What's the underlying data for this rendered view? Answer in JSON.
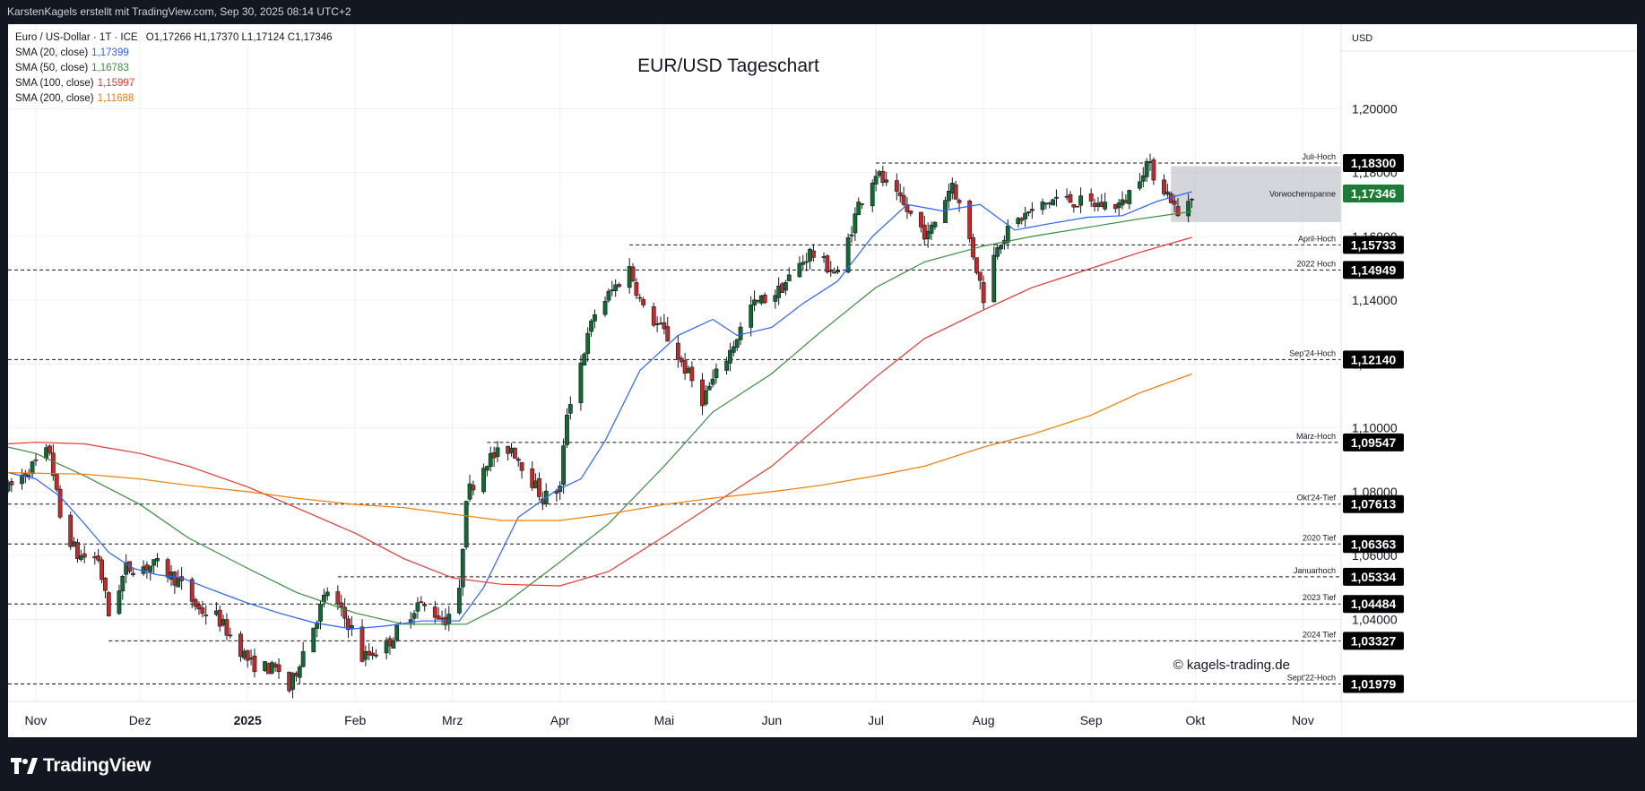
{
  "header": {
    "text": "KarstenKagels erstellt mit TradingView.com, Sep 30, 2025 08:14 UTC+2"
  },
  "brand": {
    "name": "TradingView"
  },
  "legend": {
    "symbol": "Euro / US-Dollar · 1T · ICE",
    "ohlc": "O1,17266  H1,17370  L1,17124  C1,17346",
    "indicators": [
      {
        "label": "SMA (20, close)",
        "value": "1,17399",
        "color": "#2962ff"
      },
      {
        "label": "SMA (50, close)",
        "value": "1,16783",
        "color": "#388e3c"
      },
      {
        "label": "SMA (100, close)",
        "value": "1,15997",
        "color": "#e53935"
      },
      {
        "label": "SMA (200, close)",
        "value": "1,11688",
        "color": "#f57c00"
      }
    ]
  },
  "chart_data": {
    "type": "candlestick",
    "title": "EUR/USD Tageschart",
    "currency": "USD",
    "watermark": "© kagels-trading.de",
    "y_range": [
      1.0143,
      1.2265
    ],
    "y_ticks": [
      {
        "value": 1.2,
        "label": "1,20000"
      },
      {
        "value": 1.18,
        "label": "1,18000"
      },
      {
        "value": 1.16,
        "label": "1,16000"
      },
      {
        "value": 1.14,
        "label": "1,14000"
      },
      {
        "value": 1.12,
        "label": "1,12000"
      },
      {
        "value": 1.1,
        "label": "1,10000"
      },
      {
        "value": 1.08,
        "label": "1,08000"
      },
      {
        "value": 1.06,
        "label": "1,06000"
      },
      {
        "value": 1.04,
        "label": "1,04000"
      }
    ],
    "x_range": [
      "2024-10-24",
      "2025-11-12"
    ],
    "x_ticks": [
      {
        "date": "2024-11-01",
        "label": "Nov",
        "bold": false
      },
      {
        "date": "2024-12-01",
        "label": "Dez",
        "bold": false
      },
      {
        "date": "2025-01-01",
        "label": "2025",
        "bold": true
      },
      {
        "date": "2025-02-01",
        "label": "Feb",
        "bold": false
      },
      {
        "date": "2025-03-01",
        "label": "Mrz",
        "bold": false
      },
      {
        "date": "2025-04-01",
        "label": "Apr",
        "bold": false
      },
      {
        "date": "2025-05-01",
        "label": "Mai",
        "bold": false
      },
      {
        "date": "2025-06-01",
        "label": "Jun",
        "bold": false
      },
      {
        "date": "2025-07-01",
        "label": "Jul",
        "bold": false
      },
      {
        "date": "2025-08-01",
        "label": "Aug",
        "bold": false
      },
      {
        "date": "2025-09-01",
        "label": "Sep",
        "bold": false
      },
      {
        "date": "2025-10-01",
        "label": "Okt",
        "bold": false
      },
      {
        "date": "2025-11-01",
        "label": "Nov",
        "bold": false
      }
    ],
    "levels": [
      {
        "name": "Juli-Hoch",
        "value": 1.183,
        "label": "1,18300",
        "from": "2025-07-01"
      },
      {
        "name": "April-Hoch",
        "value": 1.15733,
        "label": "1,15733",
        "from": "2025-04-21"
      },
      {
        "name": "2022 Hoch",
        "value": 1.14949,
        "label": "1,14949",
        "from": "2024-10-24"
      },
      {
        "name": "Sep'24-Hoch",
        "value": 1.1214,
        "label": "1,12140",
        "from": "2024-10-24"
      },
      {
        "name": "März-Hoch",
        "value": 1.09547,
        "label": "1,09547",
        "from": "2025-03-11"
      },
      {
        "name": "Okt'24-Tief",
        "value": 1.07613,
        "label": "1,07613",
        "from": "2024-10-24"
      },
      {
        "name": "2020 Tief",
        "value": 1.06363,
        "label": "1,06363",
        "from": "2024-10-24"
      },
      {
        "name": "Januarhoch",
        "value": 1.05334,
        "label": "1,05334",
        "from": "2025-01-27"
      },
      {
        "name": "2023 Tief",
        "value": 1.04484,
        "label": "1,04484",
        "from": "2024-10-24"
      },
      {
        "name": "2024 Tief",
        "value": 1.03327,
        "label": "1,03327",
        "from": "2024-11-22"
      },
      {
        "name": "Sept'22-Hoch",
        "value": 1.01979,
        "label": "1,01979",
        "from": "2024-10-24"
      }
    ],
    "current_price": {
      "value": 1.17346,
      "label": "1,17346",
      "color": "#1b7d35"
    },
    "range_box": {
      "name": "Vorwochenspanne",
      "from": "2025-09-24",
      "to": "2025-11-12",
      "top": 1.182,
      "bottom": 1.1645
    },
    "sma_series": [
      {
        "name": "SMA 20",
        "color": "#2962ff",
        "points": [
          [
            "2024-10-24",
            1.086
          ],
          [
            "2024-11-01",
            1.084
          ],
          [
            "2024-11-08",
            1.0785
          ],
          [
            "2024-11-15",
            1.07
          ],
          [
            "2024-11-22",
            1.061
          ],
          [
            "2024-11-29",
            1.056
          ],
          [
            "2024-12-06",
            1.054
          ],
          [
            "2024-12-13",
            1.053
          ],
          [
            "2024-12-20",
            1.05
          ],
          [
            "2024-12-31",
            1.0455
          ],
          [
            "2025-01-10",
            1.042
          ],
          [
            "2025-01-20",
            1.039
          ],
          [
            "2025-01-31",
            1.037
          ],
          [
            "2025-02-10",
            1.038
          ],
          [
            "2025-02-20",
            1.0395
          ],
          [
            "2025-03-03",
            1.0395
          ],
          [
            "2025-03-10",
            1.05
          ],
          [
            "2025-03-20",
            1.072
          ],
          [
            "2025-03-31",
            1.0805
          ],
          [
            "2025-04-07",
            1.084
          ],
          [
            "2025-04-14",
            1.096
          ],
          [
            "2025-04-24",
            1.118
          ],
          [
            "2025-05-05",
            1.129
          ],
          [
            "2025-05-15",
            1.134
          ],
          [
            "2025-05-22",
            1.129
          ],
          [
            "2025-06-01",
            1.1315
          ],
          [
            "2025-06-10",
            1.139
          ],
          [
            "2025-06-20",
            1.146
          ],
          [
            "2025-06-30",
            1.16
          ],
          [
            "2025-07-10",
            1.17
          ],
          [
            "2025-07-20",
            1.168
          ],
          [
            "2025-07-31",
            1.17
          ],
          [
            "2025-08-10",
            1.162
          ],
          [
            "2025-08-20",
            1.164
          ],
          [
            "2025-08-31",
            1.166
          ],
          [
            "2025-09-10",
            1.1665
          ],
          [
            "2025-09-20",
            1.171
          ],
          [
            "2025-09-30",
            1.174
          ]
        ]
      },
      {
        "name": "SMA 50",
        "color": "#388e3c",
        "points": [
          [
            "2024-10-24",
            1.094
          ],
          [
            "2024-11-01",
            1.092
          ],
          [
            "2024-11-15",
            1.085
          ],
          [
            "2024-12-01",
            1.076
          ],
          [
            "2024-12-15",
            1.0655
          ],
          [
            "2025-01-01",
            1.056
          ],
          [
            "2025-01-15",
            1.0485
          ],
          [
            "2025-02-01",
            1.042
          ],
          [
            "2025-02-15",
            1.0385
          ],
          [
            "2025-03-05",
            1.0385
          ],
          [
            "2025-03-15",
            1.044
          ],
          [
            "2025-04-01",
            1.058
          ],
          [
            "2025-04-15",
            1.07
          ],
          [
            "2025-05-01",
            1.088
          ],
          [
            "2025-05-15",
            1.105
          ],
          [
            "2025-06-01",
            1.117
          ],
          [
            "2025-06-15",
            1.13
          ],
          [
            "2025-07-01",
            1.144
          ],
          [
            "2025-07-15",
            1.152
          ],
          [
            "2025-08-01",
            1.157
          ],
          [
            "2025-08-15",
            1.16
          ],
          [
            "2025-09-01",
            1.163
          ],
          [
            "2025-09-15",
            1.1655
          ],
          [
            "2025-09-30",
            1.1678
          ]
        ]
      },
      {
        "name": "SMA 100",
        "color": "#e53935",
        "points": [
          [
            "2024-10-24",
            1.095
          ],
          [
            "2024-11-01",
            1.0955
          ],
          [
            "2024-11-15",
            1.095
          ],
          [
            "2024-12-01",
            1.092
          ],
          [
            "2024-12-15",
            1.088
          ],
          [
            "2025-01-01",
            1.0815
          ],
          [
            "2025-01-15",
            1.075
          ],
          [
            "2025-02-01",
            1.067
          ],
          [
            "2025-02-15",
            1.059
          ],
          [
            "2025-03-01",
            1.053
          ],
          [
            "2025-03-15",
            1.051
          ],
          [
            "2025-04-01",
            1.0505
          ],
          [
            "2025-04-15",
            1.055
          ],
          [
            "2025-05-01",
            1.066
          ],
          [
            "2025-05-15",
            1.076
          ],
          [
            "2025-06-01",
            1.088
          ],
          [
            "2025-06-15",
            1.101
          ],
          [
            "2025-07-01",
            1.116
          ],
          [
            "2025-07-15",
            1.128
          ],
          [
            "2025-08-01",
            1.137
          ],
          [
            "2025-08-15",
            1.144
          ],
          [
            "2025-09-01",
            1.15
          ],
          [
            "2025-09-15",
            1.155
          ],
          [
            "2025-09-30",
            1.1597
          ]
        ]
      },
      {
        "name": "SMA 200",
        "color": "#f57c00",
        "points": [
          [
            "2024-10-24",
            1.086
          ],
          [
            "2024-11-15",
            1.0855
          ],
          [
            "2024-12-01",
            1.084
          ],
          [
            "2024-12-15",
            1.082
          ],
          [
            "2025-01-01",
            1.08
          ],
          [
            "2025-01-15",
            1.078
          ],
          [
            "2025-02-01",
            1.076
          ],
          [
            "2025-02-15",
            1.075
          ],
          [
            "2025-03-01",
            1.073
          ],
          [
            "2025-03-15",
            1.071
          ],
          [
            "2025-04-01",
            1.071
          ],
          [
            "2025-04-15",
            1.073
          ],
          [
            "2025-05-01",
            1.076
          ],
          [
            "2025-05-15",
            1.078
          ],
          [
            "2025-06-01",
            1.08
          ],
          [
            "2025-06-15",
            1.082
          ],
          [
            "2025-07-01",
            1.085
          ],
          [
            "2025-07-15",
            1.088
          ],
          [
            "2025-08-01",
            1.094
          ],
          [
            "2025-08-15",
            1.098
          ],
          [
            "2025-09-01",
            1.104
          ],
          [
            "2025-09-15",
            1.111
          ],
          [
            "2025-09-30",
            1.1169
          ]
        ]
      }
    ],
    "price_path": [
      [
        "2024-10-24",
        1.081
      ],
      [
        "2024-10-31",
        1.088
      ],
      [
        "2024-11-05",
        1.093
      ],
      [
        "2024-11-08",
        1.072
      ],
      [
        "2024-11-13",
        1.06
      ],
      [
        "2024-11-19",
        1.059
      ],
      [
        "2024-11-22",
        1.0415
      ],
      [
        "2024-11-27",
        1.056
      ],
      [
        "2024-12-06",
        1.057
      ],
      [
        "2024-12-12",
        1.052
      ],
      [
        "2024-12-18",
        1.043
      ],
      [
        "2024-12-23",
        1.041
      ],
      [
        "2025-01-02",
        1.026
      ],
      [
        "2025-01-10",
        1.024
      ],
      [
        "2025-01-13",
        1.018
      ],
      [
        "2025-01-17",
        1.03
      ],
      [
        "2025-01-24",
        1.049
      ],
      [
        "2025-01-31",
        1.037
      ],
      [
        "2025-02-03",
        1.028
      ],
      [
        "2025-02-10",
        1.032
      ],
      [
        "2025-02-19",
        1.045
      ],
      [
        "2025-02-27",
        1.04
      ],
      [
        "2025-03-03",
        1.048
      ],
      [
        "2025-03-05",
        1.079
      ],
      [
        "2025-03-11",
        1.09
      ],
      [
        "2025-03-18",
        1.094
      ],
      [
        "2025-03-27",
        1.078
      ],
      [
        "2025-04-01",
        1.081
      ],
      [
        "2025-04-03",
        1.105
      ],
      [
        "2025-04-11",
        1.136
      ],
      [
        "2025-04-21",
        1.15
      ],
      [
        "2025-04-25",
        1.137
      ],
      [
        "2025-05-01",
        1.13
      ],
      [
        "2025-05-12",
        1.109
      ],
      [
        "2025-05-20",
        1.124
      ],
      [
        "2025-05-26",
        1.138
      ],
      [
        "2025-06-03",
        1.143
      ],
      [
        "2025-06-12",
        1.155
      ],
      [
        "2025-06-20",
        1.148
      ],
      [
        "2025-06-26",
        1.17
      ],
      [
        "2025-07-01",
        1.18
      ],
      [
        "2025-07-07",
        1.172
      ],
      [
        "2025-07-16",
        1.16
      ],
      [
        "2025-07-23",
        1.177
      ],
      [
        "2025-07-28",
        1.159
      ],
      [
        "2025-08-01",
        1.141
      ],
      [
        "2025-08-05",
        1.158
      ],
      [
        "2025-08-12",
        1.166
      ],
      [
        "2025-08-22",
        1.172
      ],
      [
        "2025-09-01",
        1.17
      ],
      [
        "2025-09-10",
        1.17
      ],
      [
        "2025-09-17",
        1.183
      ],
      [
        "2025-09-20",
        1.178
      ],
      [
        "2025-09-24",
        1.172
      ],
      [
        "2025-09-26",
        1.166
      ],
      [
        "2025-09-30",
        1.1735
      ]
    ]
  }
}
